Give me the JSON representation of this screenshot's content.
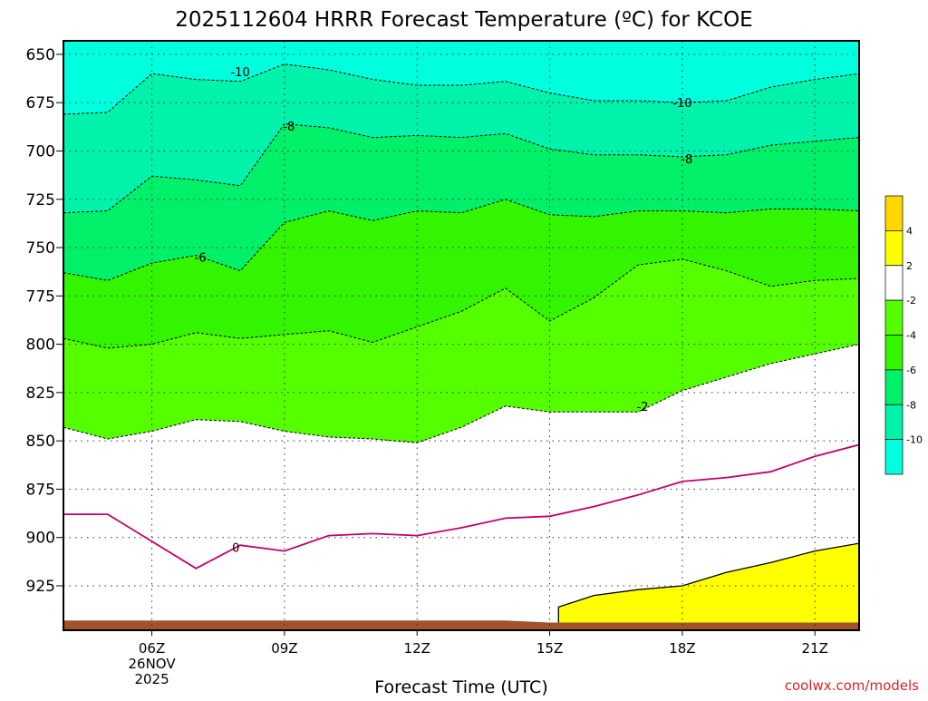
{
  "chart_data": {
    "type": "contour",
    "title": "2025112604 HRRR Forecast Temperature (ºC) for KCOE",
    "xlabel": "Forecast Time (UTC)",
    "ylabel": "",
    "credit": "coolwx.com/models",
    "x_range_hours": [
      4,
      22
    ],
    "y_range_hPa": [
      643,
      948
    ],
    "y_ticks": [
      "650",
      "675",
      "700",
      "725",
      "750",
      "775",
      "800",
      "825",
      "850",
      "875",
      "900",
      "925"
    ],
    "x_ticks": [
      {
        "hour": 6,
        "label": "06Z",
        "sub1": "26NOV",
        "sub2": "2025"
      },
      {
        "hour": 9,
        "label": "09Z"
      },
      {
        "hour": 12,
        "label": "12Z"
      },
      {
        "hour": 15,
        "label": "15Z"
      },
      {
        "hour": 18,
        "label": "18Z"
      },
      {
        "hour": 21,
        "label": "21Z"
      }
    ],
    "grid": true,
    "legend_position": "right",
    "colorbar": {
      "tick_labels": [
        "4",
        "2",
        "-2",
        "-4",
        "-6",
        "-8",
        "-10"
      ],
      "bins": [
        {
          "range": [
            4,
            6
          ],
          "color": "#ffd700"
        },
        {
          "range": [
            2,
            4
          ],
          "color": "#ffff00"
        },
        {
          "range": [
            -2,
            2
          ],
          "color": "#ffffff"
        },
        {
          "range": [
            -4,
            -2
          ],
          "color": "#55ff00"
        },
        {
          "range": [
            -6,
            -4
          ],
          "color": "#33f500"
        },
        {
          "range": [
            -8,
            -6
          ],
          "color": "#00f06a"
        },
        {
          "range": [
            -10,
            -8
          ],
          "color": "#00f2ab"
        },
        {
          "range": [
            -12,
            -10
          ],
          "color": "#00ffdd"
        }
      ]
    },
    "colors": {
      "ground": "#a0522d",
      "zero_line": "#c2006e",
      "warm_fill": "#ffff00",
      "credit": "#dd2222"
    },
    "contour_labels": [
      {
        "text": "-10",
        "hour": 8.0,
        "hPa": 659
      },
      {
        "text": "-10",
        "hour": 18.0,
        "hPa": 675
      },
      {
        "text": "-8",
        "hour": 9.1,
        "hPa": 687
      },
      {
        "text": "-8",
        "hour": 18.1,
        "hPa": 704
      },
      {
        "text": "-6",
        "hour": 7.1,
        "hPa": 755
      },
      {
        "text": "-2",
        "hour": 17.1,
        "hPa": 832
      },
      {
        "text": "0",
        "hour": 7.9,
        "hPa": 905
      }
    ],
    "series": [
      {
        "name": "-10 °C",
        "x": [
          4,
          5,
          6,
          7,
          8,
          9,
          10,
          11,
          12,
          13,
          14,
          15,
          16,
          17,
          18,
          19,
          20,
          21,
          22
        ],
        "y": [
          681,
          680,
          660,
          663,
          664,
          655,
          658,
          663,
          666,
          666,
          664,
          670,
          674,
          674,
          675,
          674,
          667,
          663,
          660
        ]
      },
      {
        "name": "-8 °C",
        "x": [
          4,
          5,
          6,
          7,
          8,
          9,
          10,
          11,
          12,
          13,
          14,
          15,
          16,
          17,
          18,
          19,
          20,
          21,
          22
        ],
        "y": [
          732,
          731,
          713,
          715,
          718,
          686,
          688,
          693,
          692,
          693,
          691,
          699,
          702,
          702,
          703,
          702,
          697,
          695,
          693
        ]
      },
      {
        "name": "-6 °C",
        "x": [
          4,
          5,
          6,
          7,
          8,
          9,
          10,
          11,
          12,
          13,
          14,
          15,
          16,
          17,
          18,
          19,
          20,
          21,
          22
        ],
        "y": [
          763,
          767,
          758,
          754,
          762,
          737,
          731,
          736,
          731,
          732,
          725,
          733,
          734,
          731,
          731,
          732,
          730,
          730,
          731
        ]
      },
      {
        "name": "-4 °C",
        "x": [
          4,
          5,
          6,
          7,
          8,
          9,
          10,
          11,
          12,
          13,
          14,
          15,
          16,
          17,
          18,
          19,
          20,
          21,
          22
        ],
        "y": [
          797,
          802,
          800,
          794,
          797,
          795,
          793,
          799,
          791,
          783,
          771,
          788,
          776,
          759,
          756,
          762,
          770,
          767,
          766
        ]
      },
      {
        "name": "-2 °C",
        "x": [
          4,
          5,
          6,
          7,
          8,
          9,
          10,
          11,
          12,
          13,
          14,
          15,
          16,
          17,
          18,
          19,
          20,
          21,
          22
        ],
        "y": [
          843,
          849,
          845,
          839,
          840,
          845,
          848,
          849,
          851,
          843,
          832,
          835,
          835,
          835,
          824,
          817,
          810,
          805,
          800
        ]
      },
      {
        "name": "0 °C",
        "x": [
          4,
          5,
          6,
          7,
          8,
          9,
          10,
          11,
          12,
          13,
          14,
          15,
          16,
          17,
          18,
          19,
          20,
          21,
          22
        ],
        "y": [
          888,
          888,
          902,
          916,
          904,
          907,
          899,
          898,
          899,
          895,
          890,
          889,
          884,
          878,
          871,
          869,
          866,
          858,
          852
        ]
      },
      {
        "name": "2 °C",
        "x": [
          15.2,
          16,
          17,
          18,
          19,
          20,
          21,
          22
        ],
        "y": [
          936,
          930,
          927,
          925,
          918,
          913,
          907,
          903
        ]
      },
      {
        "name": "surface",
        "x": [
          4,
          6,
          8,
          10,
          12,
          14,
          15,
          16,
          17,
          18,
          19,
          20,
          21,
          22
        ],
        "y": [
          943,
          943,
          943,
          943,
          943,
          943,
          944,
          944,
          944,
          944,
          944,
          944,
          944,
          944
        ]
      }
    ]
  }
}
